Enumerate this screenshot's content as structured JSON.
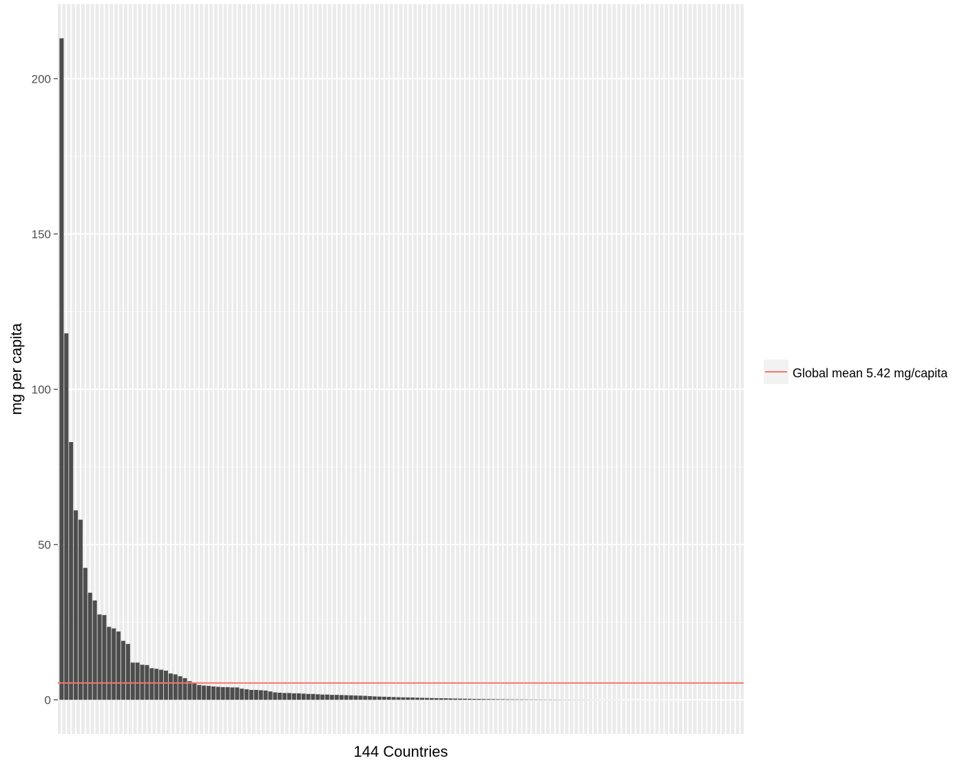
{
  "chart_data": {
    "type": "bar",
    "title": "",
    "xlabel": "144 Countries",
    "ylabel": "mg per capita",
    "ylim": [
      -11,
      224
    ],
    "yticks": [
      0,
      50,
      100,
      150,
      200
    ],
    "ytick_labels": [
      "0",
      "50",
      "100",
      "150",
      "200"
    ],
    "grid": true,
    "legend_position": "right",
    "bar_color": "#4d4d4d",
    "panel_color": "#ebebeb",
    "mean_line": {
      "label": "Global mean 5.42 mg/capita",
      "value": 5.42,
      "color": "#f8766d"
    },
    "values": [
      213.0,
      118.0,
      83.0,
      61.0,
      58.0,
      42.5,
      34.5,
      32.0,
      27.5,
      27.3,
      23.5,
      23.0,
      22.0,
      19.0,
      18.0,
      12.0,
      12.0,
      11.3,
      11.2,
      10.2,
      10.0,
      9.7,
      9.4,
      8.5,
      8.2,
      7.6,
      7.0,
      6.0,
      5.6,
      4.8,
      4.6,
      4.5,
      4.3,
      4.2,
      4.1,
      4.1,
      4.0,
      4.0,
      3.6,
      3.4,
      3.2,
      3.2,
      3.1,
      3.0,
      2.7,
      2.4,
      2.3,
      2.2,
      2.2,
      2.1,
      2.1,
      2.0,
      1.9,
      1.9,
      1.8,
      1.7,
      1.7,
      1.6,
      1.6,
      1.55,
      1.5,
      1.45,
      1.4,
      1.35,
      1.3,
      1.2,
      1.1,
      1.05,
      1.0,
      0.95,
      0.9,
      0.85,
      0.8,
      0.78,
      0.75,
      0.7,
      0.66,
      0.62,
      0.58,
      0.55,
      0.52,
      0.5,
      0.46,
      0.42,
      0.4,
      0.37,
      0.34,
      0.31,
      0.29,
      0.27,
      0.25,
      0.23,
      0.21,
      0.2,
      0.18,
      0.16,
      0.15,
      0.14,
      0.13,
      0.12,
      0.11,
      0.1,
      0.09,
      0.085,
      0.08,
      0.075,
      0.07,
      0.065,
      0.06,
      0.055,
      0.05,
      0.045,
      0.04,
      0.037,
      0.034,
      0.031,
      0.028,
      0.025,
      0.022,
      0.02,
      0.018,
      0.016,
      0.014,
      0.012,
      0.011,
      0.01,
      0.009,
      0.008,
      0.007,
      0.006,
      0.005,
      0.004,
      0.004,
      0.003,
      0.003,
      0.002,
      0.002,
      0.001,
      0.001,
      0.001,
      0.0,
      0.0,
      0.0,
      0.0
    ]
  }
}
